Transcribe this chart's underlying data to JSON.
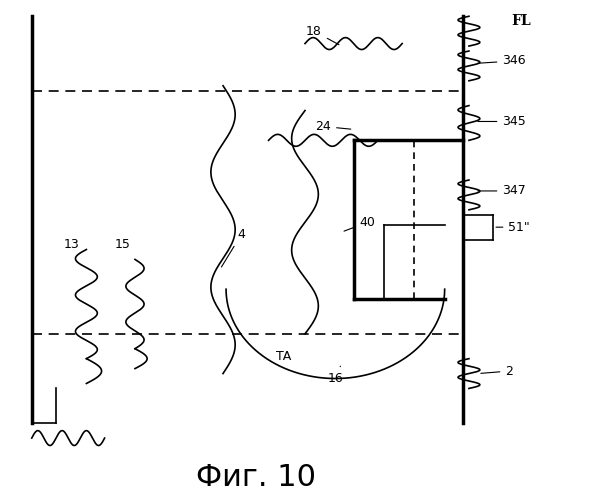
{
  "title": "Фиг. 10",
  "title_fontsize": 22,
  "bg_color": "#ffffff",
  "line_color": "#000000"
}
